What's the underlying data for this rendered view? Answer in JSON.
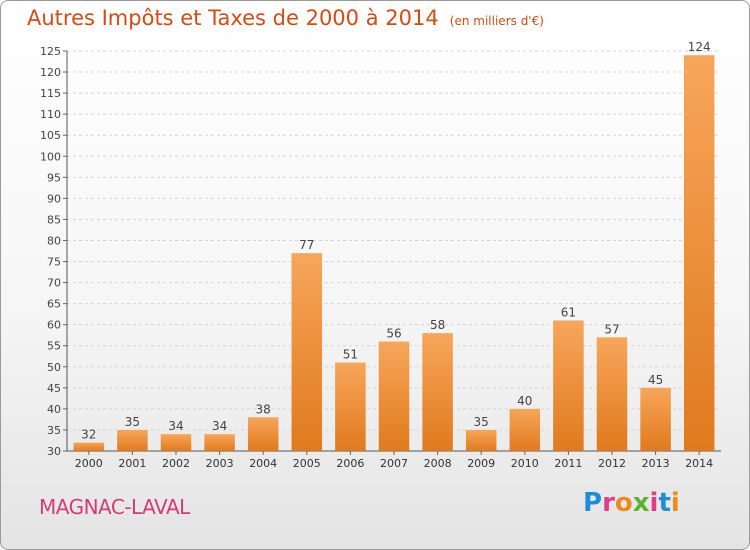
{
  "title": "Autres Impôts et Taxes de 2000 à 2014",
  "unit": "(en milliers d'€)",
  "commune": "MAGNAC-LAVAL",
  "brand": "Proxiti",
  "colors": {
    "title": "#d24c14",
    "commune": "#d23c78",
    "bar_top": "#f7a65a",
    "bar_bottom": "#e07a1e",
    "brand_letters": [
      "#1e8fd6",
      "#e03c8a",
      "#f18a1e",
      "#5bb431",
      "#e03c8a",
      "#1e8fd6",
      "#f18a1e"
    ]
  },
  "chart_data": {
    "type": "bar",
    "categories": [
      "2000",
      "2001",
      "2002",
      "2003",
      "2004",
      "2005",
      "2006",
      "2007",
      "2008",
      "2009",
      "2010",
      "2011",
      "2012",
      "2013",
      "2014"
    ],
    "values": [
      32,
      35,
      34,
      34,
      38,
      77,
      51,
      56,
      58,
      35,
      40,
      61,
      57,
      45,
      124
    ],
    "ylim": [
      30,
      125
    ],
    "yticks": [
      30,
      35,
      40,
      45,
      50,
      55,
      60,
      65,
      70,
      75,
      80,
      85,
      90,
      95,
      100,
      105,
      110,
      115,
      120,
      125
    ],
    "grid": true,
    "legend": "none"
  }
}
